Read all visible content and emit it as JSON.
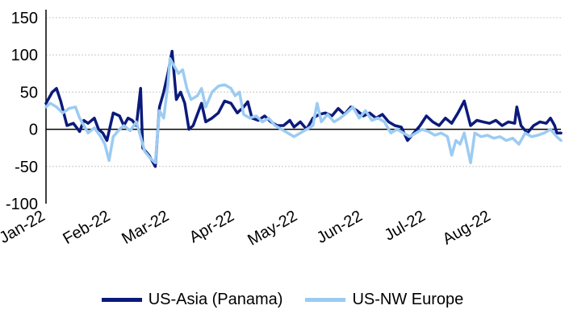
{
  "chart_data": {
    "type": "line",
    "title": "",
    "xlabel": "",
    "ylabel": "",
    "ylim": [
      -100,
      150
    ],
    "yticks": [
      -100,
      -50,
      0,
      50,
      100,
      150
    ],
    "ytick_labels": [
      "-100",
      "-50",
      "0",
      "50",
      "100",
      "150"
    ],
    "xlim": [
      "2022-01-01",
      "2022-09-03"
    ],
    "xtick_labels": [
      {
        "date": "2022-01-01",
        "label": "Jan-22"
      },
      {
        "date": "2022-02-01",
        "label": "Feb-22"
      },
      {
        "date": "2022-03-01",
        "label": "Mar-22"
      },
      {
        "date": "2022-04-01",
        "label": "Apr-22"
      },
      {
        "date": "2022-05-01",
        "label": "May-22"
      },
      {
        "date": "2022-06-01",
        "label": "Jun-22"
      },
      {
        "date": "2022-07-01",
        "label": "Jul-22"
      },
      {
        "date": "2022-08-01",
        "label": "Aug-22"
      }
    ],
    "grid": "horizontal-dotted",
    "legend_position": "bottom",
    "series": [
      {
        "name": "US-Asia (Panama)",
        "color": "#0b1a7a",
        "points": [
          [
            "2022-01-01",
            35
          ],
          [
            "2022-01-04",
            50
          ],
          [
            "2022-01-06",
            55
          ],
          [
            "2022-01-08",
            38
          ],
          [
            "2022-01-11",
            5
          ],
          [
            "2022-01-14",
            8
          ],
          [
            "2022-01-17",
            -3
          ],
          [
            "2022-01-19",
            12
          ],
          [
            "2022-01-21",
            8
          ],
          [
            "2022-01-24",
            15
          ],
          [
            "2022-01-26",
            0
          ],
          [
            "2022-01-28",
            -5
          ],
          [
            "2022-01-30",
            -15
          ],
          [
            "2022-02-02",
            22
          ],
          [
            "2022-02-05",
            18
          ],
          [
            "2022-02-07",
            5
          ],
          [
            "2022-02-09",
            15
          ],
          [
            "2022-02-11",
            12
          ],
          [
            "2022-02-13",
            5
          ],
          [
            "2022-02-15",
            55
          ],
          [
            "2022-02-16",
            -25
          ],
          [
            "2022-02-19",
            -35
          ],
          [
            "2022-02-22",
            -50
          ],
          [
            "2022-02-24",
            30
          ],
          [
            "2022-02-26",
            50
          ],
          [
            "2022-02-28",
            75
          ],
          [
            "2022-03-02",
            105
          ],
          [
            "2022-03-04",
            40
          ],
          [
            "2022-03-06",
            50
          ],
          [
            "2022-03-08",
            35
          ],
          [
            "2022-03-10",
            0
          ],
          [
            "2022-03-12",
            5
          ],
          [
            "2022-03-14",
            20
          ],
          [
            "2022-03-16",
            35
          ],
          [
            "2022-03-18",
            10
          ],
          [
            "2022-03-21",
            15
          ],
          [
            "2022-03-24",
            22
          ],
          [
            "2022-03-27",
            38
          ],
          [
            "2022-03-30",
            35
          ],
          [
            "2022-04-02",
            22
          ],
          [
            "2022-04-05",
            30
          ],
          [
            "2022-04-07",
            37
          ],
          [
            "2022-04-09",
            15
          ],
          [
            "2022-04-12",
            12
          ],
          [
            "2022-04-15",
            18
          ],
          [
            "2022-04-18",
            10
          ],
          [
            "2022-04-21",
            5
          ],
          [
            "2022-04-24",
            5
          ],
          [
            "2022-04-27",
            12
          ],
          [
            "2022-04-29",
            3
          ],
          [
            "2022-05-02",
            10
          ],
          [
            "2022-05-05",
            0
          ],
          [
            "2022-05-08",
            15
          ],
          [
            "2022-05-11",
            20
          ],
          [
            "2022-05-14",
            22
          ],
          [
            "2022-05-17",
            18
          ],
          [
            "2022-05-20",
            28
          ],
          [
            "2022-05-23",
            20
          ],
          [
            "2022-05-26",
            30
          ],
          [
            "2022-05-29",
            25
          ],
          [
            "2022-06-01",
            18
          ],
          [
            "2022-06-04",
            22
          ],
          [
            "2022-06-07",
            15
          ],
          [
            "2022-06-10",
            20
          ],
          [
            "2022-06-13",
            10
          ],
          [
            "2022-06-16",
            5
          ],
          [
            "2022-06-19",
            3
          ],
          [
            "2022-06-22",
            -15
          ],
          [
            "2022-06-25",
            -5
          ],
          [
            "2022-06-28",
            5
          ],
          [
            "2022-07-01",
            18
          ],
          [
            "2022-07-04",
            10
          ],
          [
            "2022-07-07",
            5
          ],
          [
            "2022-07-10",
            15
          ],
          [
            "2022-07-13",
            8
          ],
          [
            "2022-07-16",
            22
          ],
          [
            "2022-07-19",
            38
          ],
          [
            "2022-07-22",
            5
          ],
          [
            "2022-07-25",
            12
          ],
          [
            "2022-07-28",
            10
          ],
          [
            "2022-07-31",
            8
          ],
          [
            "2022-08-03",
            12
          ],
          [
            "2022-08-06",
            5
          ],
          [
            "2022-08-09",
            10
          ],
          [
            "2022-08-12",
            8
          ],
          [
            "2022-08-13",
            30
          ],
          [
            "2022-08-15",
            5
          ],
          [
            "2022-08-18",
            -5
          ],
          [
            "2022-08-21",
            5
          ],
          [
            "2022-08-24",
            10
          ],
          [
            "2022-08-27",
            8
          ],
          [
            "2022-08-29",
            15
          ],
          [
            "2022-08-31",
            5
          ],
          [
            "2022-09-01",
            -5
          ],
          [
            "2022-09-03",
            -5
          ]
        ]
      },
      {
        "name": "US-NW Europe",
        "color": "#9ccbf2",
        "points": [
          [
            "2022-01-01",
            30
          ],
          [
            "2022-01-03",
            35
          ],
          [
            "2022-01-06",
            30
          ],
          [
            "2022-01-09",
            22
          ],
          [
            "2022-01-12",
            28
          ],
          [
            "2022-01-15",
            30
          ],
          [
            "2022-01-17",
            15
          ],
          [
            "2022-01-19",
            5
          ],
          [
            "2022-01-21",
            -5
          ],
          [
            "2022-01-24",
            2
          ],
          [
            "2022-01-27",
            -10
          ],
          [
            "2022-01-29",
            -20
          ],
          [
            "2022-01-31",
            -42
          ],
          [
            "2022-02-02",
            -10
          ],
          [
            "2022-02-05",
            0
          ],
          [
            "2022-02-07",
            5
          ],
          [
            "2022-02-10",
            -2
          ],
          [
            "2022-02-13",
            10
          ],
          [
            "2022-02-15",
            -10
          ],
          [
            "2022-02-17",
            -30
          ],
          [
            "2022-02-20",
            -40
          ],
          [
            "2022-02-22",
            -45
          ],
          [
            "2022-02-24",
            25
          ],
          [
            "2022-02-26",
            15
          ],
          [
            "2022-02-28",
            60
          ],
          [
            "2022-03-01",
            95
          ],
          [
            "2022-03-03",
            85
          ],
          [
            "2022-03-05",
            75
          ],
          [
            "2022-03-07",
            80
          ],
          [
            "2022-03-09",
            55
          ],
          [
            "2022-03-11",
            40
          ],
          [
            "2022-03-14",
            45
          ],
          [
            "2022-03-16",
            55
          ],
          [
            "2022-03-18",
            30
          ],
          [
            "2022-03-21",
            50
          ],
          [
            "2022-03-24",
            58
          ],
          [
            "2022-03-27",
            60
          ],
          [
            "2022-03-30",
            55
          ],
          [
            "2022-04-01",
            45
          ],
          [
            "2022-04-03",
            50
          ],
          [
            "2022-04-05",
            20
          ],
          [
            "2022-04-08",
            15
          ],
          [
            "2022-04-11",
            18
          ],
          [
            "2022-04-14",
            10
          ],
          [
            "2022-04-17",
            15
          ],
          [
            "2022-04-20",
            5
          ],
          [
            "2022-04-23",
            0
          ],
          [
            "2022-04-26",
            -5
          ],
          [
            "2022-04-29",
            -10
          ],
          [
            "2022-05-02",
            -5
          ],
          [
            "2022-05-05",
            0
          ],
          [
            "2022-05-08",
            5
          ],
          [
            "2022-05-10",
            35
          ],
          [
            "2022-05-12",
            10
          ],
          [
            "2022-05-15",
            20
          ],
          [
            "2022-05-18",
            10
          ],
          [
            "2022-05-21",
            15
          ],
          [
            "2022-05-24",
            22
          ],
          [
            "2022-05-27",
            30
          ],
          [
            "2022-05-30",
            15
          ],
          [
            "2022-06-02",
            25
          ],
          [
            "2022-06-05",
            12
          ],
          [
            "2022-06-08",
            15
          ],
          [
            "2022-06-11",
            10
          ],
          [
            "2022-06-14",
            -5
          ],
          [
            "2022-06-17",
            0
          ],
          [
            "2022-06-20",
            -5
          ],
          [
            "2022-06-23",
            -10
          ],
          [
            "2022-06-26",
            -5
          ],
          [
            "2022-06-29",
            0
          ],
          [
            "2022-07-02",
            -3
          ],
          [
            "2022-07-05",
            -8
          ],
          [
            "2022-07-08",
            -5
          ],
          [
            "2022-07-11",
            -10
          ],
          [
            "2022-07-13",
            -35
          ],
          [
            "2022-07-15",
            -15
          ],
          [
            "2022-07-17",
            -20
          ],
          [
            "2022-07-19",
            -5
          ],
          [
            "2022-07-22",
            -45
          ],
          [
            "2022-07-24",
            -5
          ],
          [
            "2022-07-27",
            -10
          ],
          [
            "2022-07-30",
            -8
          ],
          [
            "2022-08-02",
            -12
          ],
          [
            "2022-08-05",
            -10
          ],
          [
            "2022-08-08",
            -15
          ],
          [
            "2022-08-11",
            -12
          ],
          [
            "2022-08-14",
            -20
          ],
          [
            "2022-08-17",
            -5
          ],
          [
            "2022-08-20",
            -10
          ],
          [
            "2022-08-23",
            -8
          ],
          [
            "2022-08-26",
            -5
          ],
          [
            "2022-08-29",
            0
          ],
          [
            "2022-09-01",
            -10
          ],
          [
            "2022-09-03",
            -15
          ]
        ]
      }
    ]
  }
}
